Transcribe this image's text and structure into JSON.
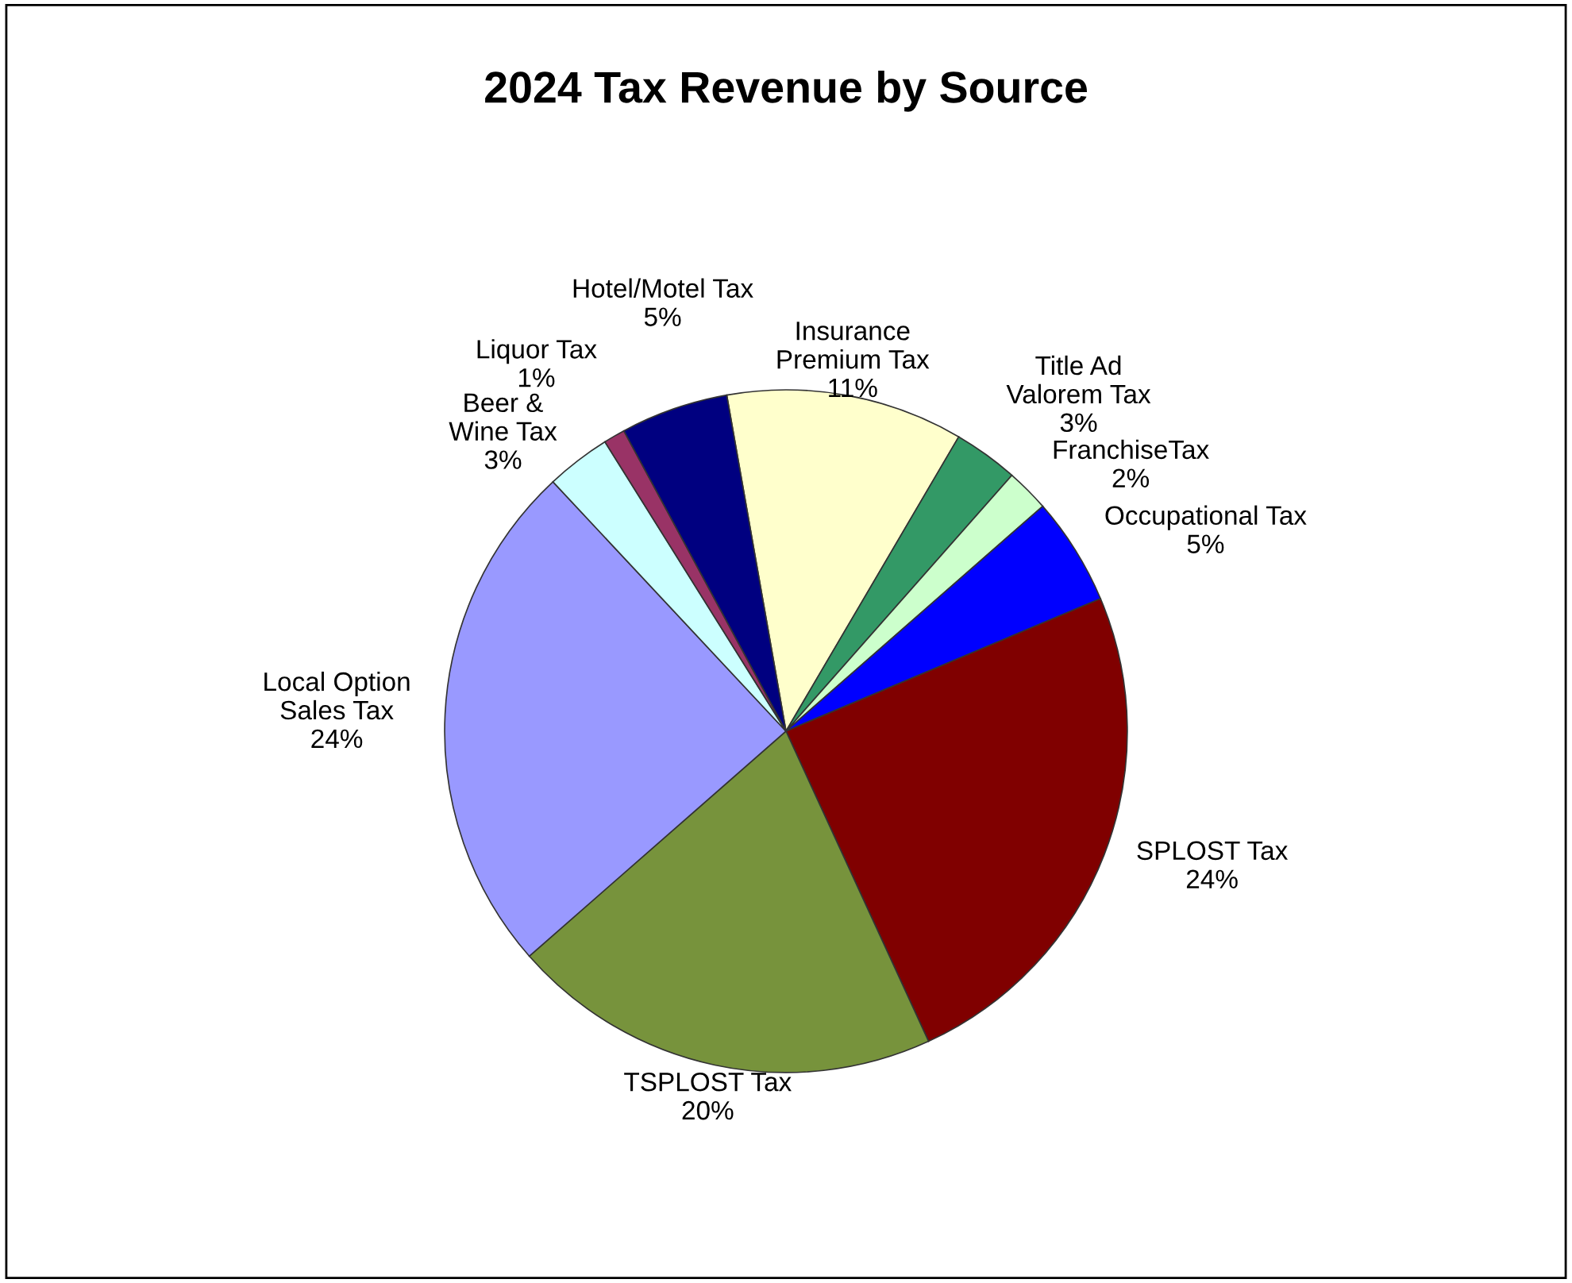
{
  "chart_data": {
    "type": "pie",
    "title": "2024 Tax Revenue by Source",
    "categories": [
      "Insurance Premium Tax",
      "Title Ad Valorem Tax",
      "FranchiseTax",
      "Occupational Tax",
      "SPLOST Tax",
      "TSPLOST Tax",
      "Local Option Sales Tax",
      "Beer & Wine Tax",
      "Liquor Tax",
      "Hotel/Motel Tax"
    ],
    "values": [
      11,
      3,
      2,
      5,
      24,
      20,
      24,
      3,
      1,
      5
    ],
    "value_labels": [
      "11%",
      "3%",
      "2%",
      "5%",
      "24%",
      "20%",
      "24%",
      "3%",
      "1%",
      "5%"
    ],
    "colors": [
      "#ffffcc",
      "#339966",
      "#ccffcc",
      "#0000ff",
      "#800000",
      "#77933c",
      "#9999ff",
      "#ccffff",
      "#993366",
      "#000080"
    ],
    "legend": false
  }
}
